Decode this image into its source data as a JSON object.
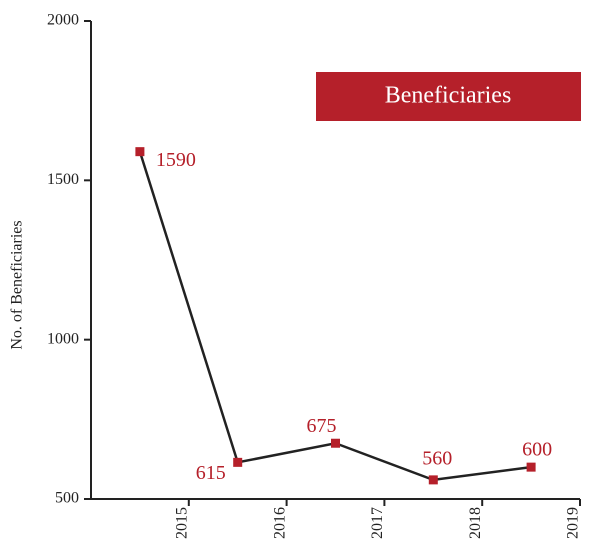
{
  "chart_data": {
    "type": "line",
    "y_label": "No. of Beneficiaries",
    "x": [
      2014.5,
      2015.5,
      2016.5,
      2017.5,
      2018.5
    ],
    "series": [
      {
        "name": "Beneficiaries",
        "color": "#b5202a",
        "line_color": "#222222",
        "values": [
          1590,
          615,
          675,
          560,
          600
        ]
      }
    ],
    "xlim": [
      2014,
      2019
    ],
    "xticks": [
      2015,
      2016,
      2017,
      2018,
      2019
    ],
    "ylim": [
      500,
      2000
    ],
    "yticks": [
      500,
      1000,
      1500,
      2000
    ],
    "legend": "top-right"
  }
}
